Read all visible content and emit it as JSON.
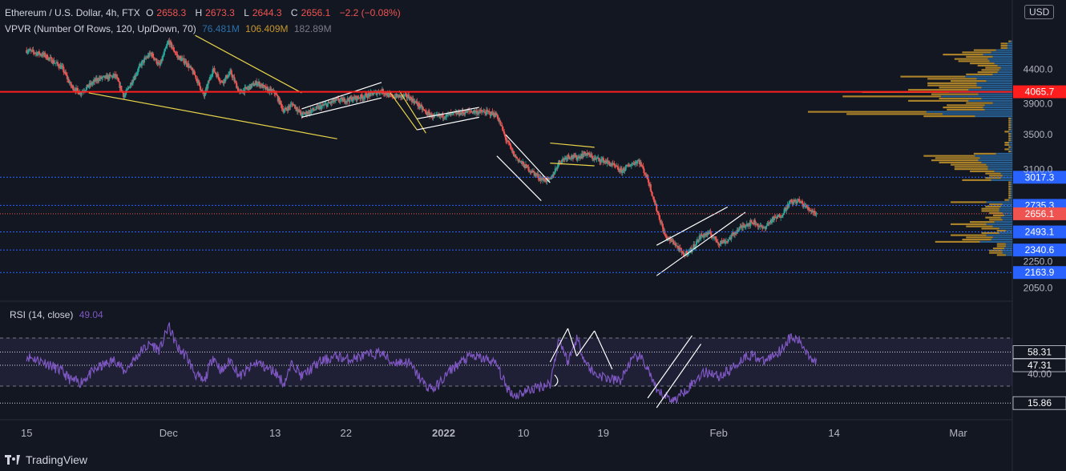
{
  "header": {
    "symbol": "Ethereum / U.S. Dollar, 4h, FTX",
    "open_label": "O",
    "open": "2658.3",
    "high_label": "H",
    "high": "2673.3",
    "low_label": "L",
    "low": "2644.3",
    "close_label": "C",
    "close": "2656.1",
    "change": "−2.2 (−0.08%)",
    "vpvr_label": "VPVR (Number Of Rows, 120, Up/Down, 70)",
    "vpvr_up": "76.481M",
    "vpvr_down": "106.409M",
    "vpvr_total": "182.89M",
    "rsi_label": "RSI (14, close)",
    "rsi_value": "49.04",
    "currency": "USD",
    "brand": "TradingView"
  },
  "colors": {
    "background": "#131722",
    "up": "#26a69a",
    "down": "#ef5350",
    "resistance": "#ff1e1e",
    "support_line": "#2962ff",
    "trendline_yellow": "#e8d34a",
    "trendline_white": "#ffffff",
    "rsi_line": "#7e57c2",
    "vpvr_up": "#2b6fa8",
    "vpvr_down": "#c8962a"
  },
  "chart_data": [
    {
      "type": "candlestick",
      "title": "Ethereum / U.S. Dollar, 4h, FTX",
      "ylim": [
        1980,
        4980
      ],
      "price_ticks": [
        2050.0,
        2250.0,
        3100.0,
        3500.0,
        3900.0,
        4400.0
      ],
      "x_ticks": [
        "15",
        "Dec",
        "13",
        "22",
        "2022",
        "10",
        "19",
        "Feb",
        "14",
        "Mar"
      ],
      "x_tick_positions": [
        0,
        16,
        28,
        36,
        47,
        56,
        65,
        78,
        91,
        105
      ],
      "x_range": [
        -3,
        111
      ],
      "ohlc_path": [
        [
          0,
          4700
        ],
        [
          2,
          4620
        ],
        [
          4,
          4420
        ],
        [
          5,
          4150
        ],
        [
          6,
          4050
        ],
        [
          8,
          4250
        ],
        [
          10,
          4300
        ],
        [
          11,
          4000
        ],
        [
          13,
          4500
        ],
        [
          14,
          4650
        ],
        [
          15,
          4450
        ],
        [
          16,
          4850
        ],
        [
          17,
          4600
        ],
        [
          18,
          4500
        ],
        [
          19,
          4300
        ],
        [
          20,
          4000
        ],
        [
          21,
          4400
        ],
        [
          22,
          4200
        ],
        [
          23,
          4350
        ],
        [
          24,
          4050
        ],
        [
          26,
          4200
        ],
        [
          27,
          4100
        ],
        [
          28,
          4050
        ],
        [
          29,
          3800
        ],
        [
          30,
          3900
        ],
        [
          31,
          3750
        ],
        [
          33,
          3850
        ],
        [
          35,
          3950
        ],
        [
          36,
          3950
        ],
        [
          38,
          4000
        ],
        [
          40,
          4080
        ],
        [
          41,
          4000
        ],
        [
          43,
          4000
        ],
        [
          44,
          3900
        ],
        [
          45,
          3780
        ],
        [
          46,
          3720
        ],
        [
          48,
          3760
        ],
        [
          50,
          3800
        ],
        [
          52,
          3780
        ],
        [
          53,
          3750
        ],
        [
          54,
          3450
        ],
        [
          55,
          3250
        ],
        [
          56,
          3150
        ],
        [
          58,
          3000
        ],
        [
          59,
          2980
        ],
        [
          60,
          3180
        ],
        [
          61,
          3250
        ],
        [
          62,
          3230
        ],
        [
          63,
          3280
        ],
        [
          64,
          3220
        ],
        [
          65,
          3200
        ],
        [
          66,
          3150
        ],
        [
          67,
          3080
        ],
        [
          68,
          3150
        ],
        [
          69,
          3200
        ],
        [
          70,
          3000
        ],
        [
          71,
          2700
        ],
        [
          72,
          2450
        ],
        [
          73,
          2400
        ],
        [
          74,
          2300
        ],
        [
          75,
          2350
        ],
        [
          76,
          2460
        ],
        [
          77,
          2480
        ],
        [
          78,
          2400
        ],
        [
          79,
          2420
        ],
        [
          80,
          2500
        ],
        [
          81,
          2560
        ],
        [
          82,
          2580
        ],
        [
          83,
          2520
        ],
        [
          84,
          2600
        ],
        [
          85,
          2640
        ],
        [
          86,
          2760
        ],
        [
          87,
          2780
        ],
        [
          88,
          2710
        ],
        [
          89,
          2660
        ]
      ],
      "horizontal_levels": [
        {
          "value": 4065.7,
          "label": "4065.7",
          "style": "resistance"
        },
        {
          "value": 3017.3,
          "label": "3017.3",
          "style": "support"
        },
        {
          "value": 2735.3,
          "label": "2735.3",
          "style": "support"
        },
        {
          "value": 2656.1,
          "label": "2656.1",
          "style": "last_price"
        },
        {
          "value": 2493.1,
          "label": "2493.1",
          "style": "support"
        },
        {
          "value": 2340.6,
          "label": "2340.6",
          "style": "support"
        },
        {
          "value": 2163.9,
          "label": "2163.9",
          "style": "support"
        }
      ]
    },
    {
      "type": "line",
      "title": "RSI (14, close)",
      "ylim": [
        10,
        90
      ],
      "y_ticks": [
        40.0
      ],
      "levels": [
        {
          "value": 58.31,
          "label": "58.31"
        },
        {
          "value": 47.31,
          "label": "47.31"
        },
        {
          "value": 15.86,
          "label": "15.86"
        }
      ],
      "rsi_path": [
        [
          0,
          55
        ],
        [
          2,
          50
        ],
        [
          4,
          42
        ],
        [
          5,
          35
        ],
        [
          6,
          33
        ],
        [
          8,
          45
        ],
        [
          10,
          52
        ],
        [
          11,
          42
        ],
        [
          13,
          60
        ],
        [
          14,
          65
        ],
        [
          15,
          60
        ],
        [
          16,
          80
        ],
        [
          17,
          62
        ],
        [
          18,
          55
        ],
        [
          19,
          40
        ],
        [
          20,
          33
        ],
        [
          21,
          55
        ],
        [
          22,
          42
        ],
        [
          23,
          52
        ],
        [
          24,
          38
        ],
        [
          26,
          50
        ],
        [
          27,
          45
        ],
        [
          28,
          42
        ],
        [
          29,
          32
        ],
        [
          30,
          50
        ],
        [
          31,
          38
        ],
        [
          33,
          50
        ],
        [
          35,
          55
        ],
        [
          36,
          52
        ],
        [
          38,
          55
        ],
        [
          40,
          58
        ],
        [
          41,
          50
        ],
        [
          43,
          50
        ],
        [
          44,
          40
        ],
        [
          45,
          30
        ],
        [
          46,
          28
        ],
        [
          48,
          45
        ],
        [
          50,
          55
        ],
        [
          52,
          52
        ],
        [
          53,
          48
        ],
        [
          54,
          30
        ],
        [
          55,
          22
        ],
        [
          56,
          25
        ],
        [
          58,
          30
        ],
        [
          59,
          32
        ],
        [
          60,
          70
        ],
        [
          61,
          50
        ],
        [
          62,
          70
        ],
        [
          63,
          50
        ],
        [
          64,
          40
        ],
        [
          65,
          38
        ],
        [
          66,
          35
        ],
        [
          67,
          35
        ],
        [
          68,
          50
        ],
        [
          69,
          55
        ],
        [
          70,
          45
        ],
        [
          71,
          25
        ],
        [
          72,
          22
        ],
        [
          73,
          18
        ],
        [
          74,
          25
        ],
        [
          75,
          32
        ],
        [
          76,
          40
        ],
        [
          77,
          42
        ],
        [
          78,
          38
        ],
        [
          79,
          42
        ],
        [
          80,
          48
        ],
        [
          81,
          55
        ],
        [
          82,
          56
        ],
        [
          83,
          50
        ],
        [
          84,
          55
        ],
        [
          85,
          60
        ],
        [
          86,
          70
        ],
        [
          87,
          68
        ],
        [
          88,
          58
        ],
        [
          89,
          49
        ]
      ]
    }
  ]
}
